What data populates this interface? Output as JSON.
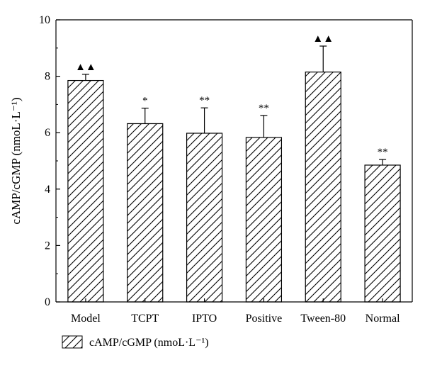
{
  "chart_data": {
    "type": "bar",
    "categories": [
      "Model",
      "TCPT",
      "IPTO",
      "Positive",
      "Tween-80",
      "Normal"
    ],
    "series": [
      {
        "name": "cAMP/cGMP (nmoL·L⁻¹)",
        "values": [
          7.85,
          6.32,
          5.98,
          5.83,
          8.15,
          4.85
        ],
        "errors": [
          0.22,
          0.55,
          0.9,
          0.78,
          0.92,
          0.2
        ]
      }
    ],
    "annotations": [
      "▲▲",
      "*",
      "**",
      "**",
      "▲▲",
      "**"
    ],
    "ylabel": "cAMP/cGMP (nmoL·L⁻¹)",
    "xlabel": "",
    "ylim": [
      0,
      10
    ],
    "yticks": [
      "0",
      "2",
      "4",
      "6",
      "8",
      "10"
    ],
    "legend_position": "bottom-left",
    "grid": false,
    "bar_fill": "hatched",
    "colors": {
      "bar_stroke": "#000000",
      "hatch": "#000000",
      "background": "#ffffff"
    }
  }
}
